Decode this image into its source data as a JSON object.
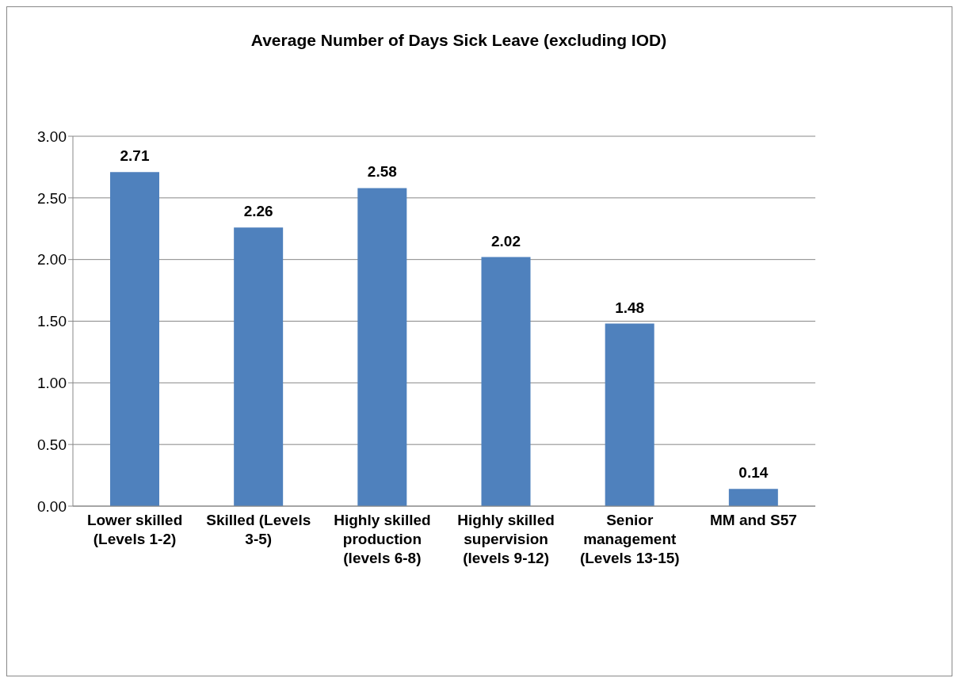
{
  "chart_data": {
    "type": "bar",
    "title": "Average Number of Days Sick Leave (excluding IOD)",
    "categories": [
      "Lower skilled (Levels 1-2)",
      "Skilled (Levels 3-5)",
      "Highly skilled production (levels 6-8)",
      "Highly skilled supervision (levels 9-12)",
      "Senior management (Levels 13-15)",
      "MM and S57"
    ],
    "values": [
      2.71,
      2.26,
      2.58,
      2.02,
      1.48,
      0.14
    ],
    "color": "#4f81bd",
    "ylim": [
      0,
      3
    ],
    "yticks": [
      {
        "value": 0,
        "label": "0.00"
      },
      {
        "value": 0.5,
        "label": "0.50"
      },
      {
        "value": 1,
        "label": "1.00"
      },
      {
        "value": 1.5,
        "label": "1.50"
      },
      {
        "value": 2,
        "label": "2.00"
      },
      {
        "value": 2.5,
        "label": "2.50"
      },
      {
        "value": 3,
        "label": "3.00"
      }
    ],
    "grid": "y",
    "data_labels": true,
    "legend": false
  }
}
